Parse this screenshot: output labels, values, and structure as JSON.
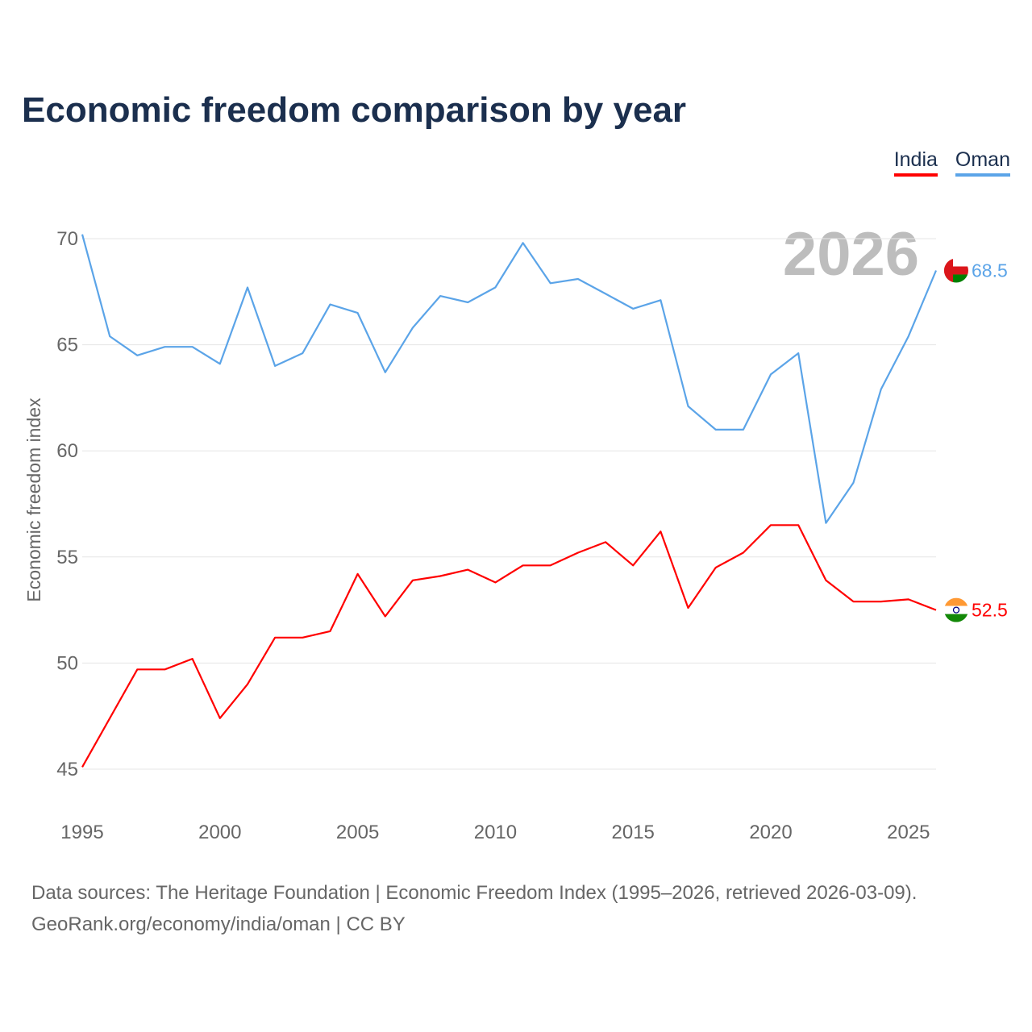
{
  "chart_data": {
    "type": "line",
    "title": "Economic freedom comparison by year",
    "xlabel": "",
    "ylabel": "Economic freedom index",
    "xlim": [
      1995,
      2026
    ],
    "ylim": [
      45,
      70
    ],
    "yticks": [
      "45",
      "50",
      "55",
      "60",
      "65",
      "70"
    ],
    "xticks": [
      "1995",
      "2000",
      "2005",
      "2010",
      "2015",
      "2020",
      "2025"
    ],
    "grid": true,
    "legend_position": "top-right",
    "highlight_year": "2026",
    "x": [
      1995,
      1996,
      1997,
      1998,
      1999,
      2000,
      2001,
      2002,
      2003,
      2004,
      2005,
      2006,
      2007,
      2008,
      2009,
      2010,
      2011,
      2012,
      2013,
      2014,
      2015,
      2016,
      2017,
      2018,
      2019,
      2020,
      2021,
      2022,
      2023,
      2024,
      2025,
      2026
    ],
    "series": [
      {
        "name": "India",
        "color": "#ff0000",
        "end_label": "52.5",
        "flag": "india-flag",
        "values": [
          45.1,
          47.4,
          49.7,
          49.7,
          50.2,
          47.4,
          49.0,
          51.2,
          51.2,
          51.5,
          54.2,
          52.2,
          53.9,
          54.1,
          54.4,
          53.8,
          54.6,
          54.6,
          55.2,
          55.7,
          54.6,
          56.2,
          52.6,
          54.5,
          55.2,
          56.5,
          56.5,
          53.9,
          52.9,
          52.9,
          53.0,
          52.5
        ]
      },
      {
        "name": "Oman",
        "color": "#5ba4e8",
        "end_label": "68.5",
        "flag": "oman-flag",
        "values": [
          70.2,
          65.4,
          64.5,
          64.9,
          64.9,
          64.1,
          67.7,
          64.0,
          64.6,
          66.9,
          66.5,
          63.7,
          65.8,
          67.3,
          67.0,
          67.7,
          69.8,
          67.9,
          68.1,
          67.4,
          66.7,
          67.1,
          62.1,
          61.0,
          61.0,
          63.6,
          64.6,
          56.6,
          58.5,
          62.9,
          65.4,
          68.5
        ]
      }
    ]
  },
  "source": {
    "line1": "Data sources: The Heritage Foundation | Economic Freedom Index (1995–2026, retrieved 2026-03-09).",
    "line2": "GeoRank.org/economy/india/oman | CC BY"
  }
}
